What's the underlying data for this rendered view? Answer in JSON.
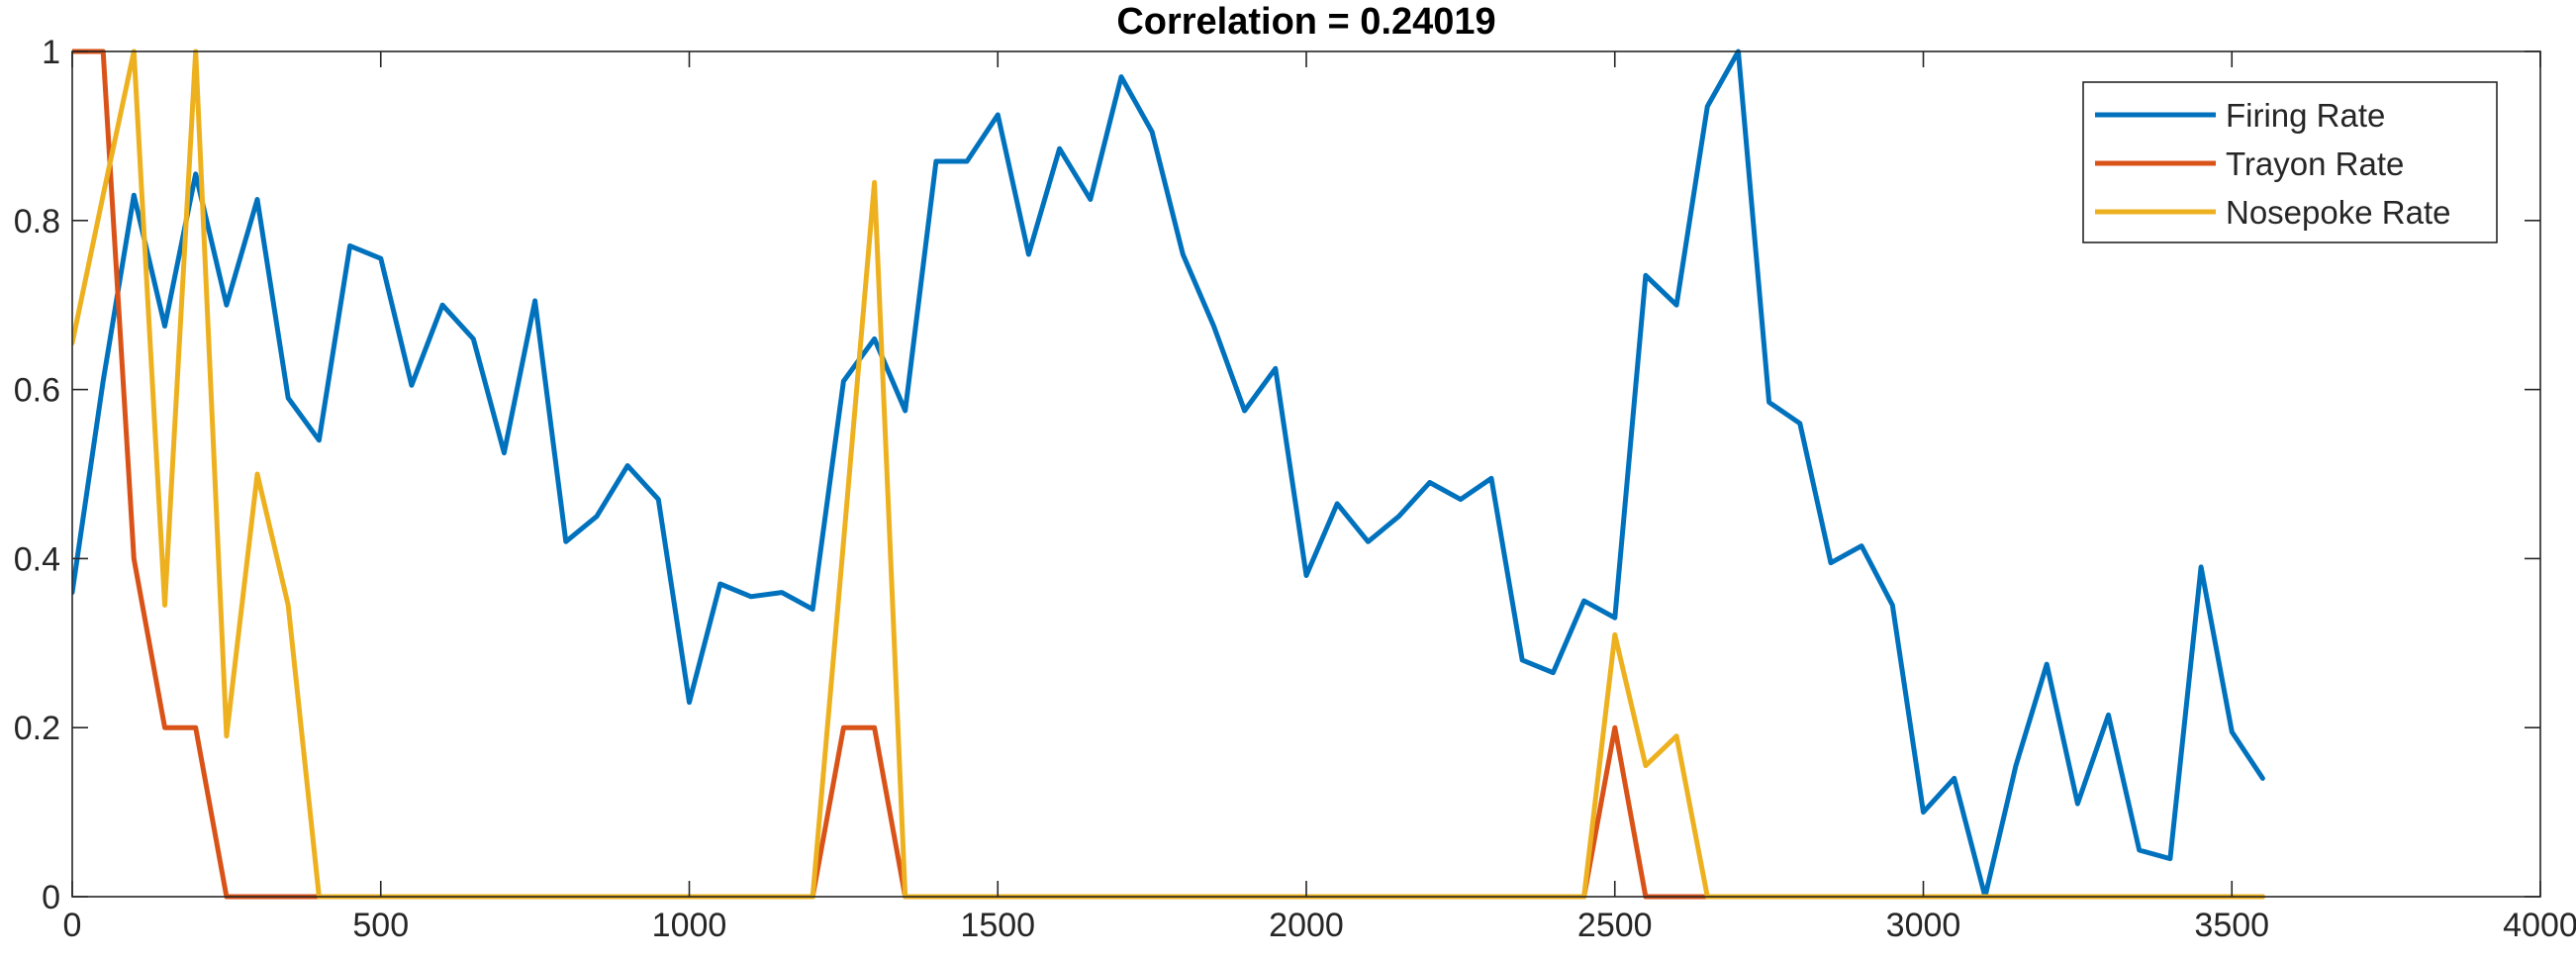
{
  "chart_data": {
    "type": "line",
    "title": "Correlation = 0.24019",
    "xlabel": "",
    "ylabel": "",
    "xlim": [
      0,
      4000
    ],
    "ylim": [
      0,
      1
    ],
    "x_ticks": [
      0,
      500,
      1000,
      1500,
      2000,
      2500,
      3000,
      3500,
      4000
    ],
    "y_ticks": [
      0,
      0.2,
      0.4,
      0.6,
      0.8,
      1
    ],
    "x_tick_labels": [
      "0",
      "500",
      "1000",
      "1500",
      "2000",
      "2500",
      "3000",
      "3500",
      "4000"
    ],
    "y_tick_labels": [
      "0",
      "0.2",
      "0.4",
      "0.6",
      "0.8",
      "1"
    ],
    "grid": false,
    "box": true,
    "legend_position": "top-right",
    "series": [
      {
        "name": "Firing Rate",
        "color": "#0072BD",
        "x": [
          0,
          50,
          100,
          150,
          200,
          250,
          300,
          350,
          400,
          450,
          500,
          550,
          600,
          650,
          700,
          750,
          800,
          850,
          900,
          950,
          1000,
          1050,
          1100,
          1150,
          1200,
          1250,
          1300,
          1350,
          1400,
          1450,
          1500,
          1550,
          1600,
          1650,
          1700,
          1750,
          1800,
          1850,
          1900,
          1950,
          2000,
          2050,
          2100,
          2150,
          2200,
          2250,
          2300,
          2350,
          2400,
          2450,
          2500,
          2550,
          2600,
          2650,
          2700,
          2750,
          2800,
          2850,
          2900,
          2950,
          3000,
          3050,
          3100,
          3150,
          3200,
          3250,
          3300,
          3350,
          3400,
          3450,
          3500,
          3550
        ],
        "values": [
          0.36,
          0.61,
          0.83,
          0.675,
          0.855,
          0.7,
          0.825,
          0.59,
          0.54,
          0.77,
          0.755,
          0.605,
          0.7,
          0.66,
          0.525,
          0.705,
          0.42,
          0.45,
          0.51,
          0.47,
          0.23,
          0.37,
          0.355,
          0.36,
          0.34,
          0.61,
          0.66,
          0.575,
          0.87,
          0.87,
          0.925,
          0.76,
          0.885,
          0.825,
          0.97,
          0.905,
          0.76,
          0.675,
          0.575,
          0.625,
          0.38,
          0.465,
          0.42,
          0.45,
          0.49,
          0.47,
          0.495,
          0.28,
          0.265,
          0.35,
          0.33,
          0.735,
          0.7,
          0.935,
          1.0,
          0.585,
          0.56,
          0.395,
          0.415,
          0.345,
          0.1,
          0.14,
          0.0,
          0.155,
          0.275,
          0.11,
          0.215,
          0.055,
          0.045,
          0.39,
          0.195,
          0.14
        ]
      },
      {
        "name": "Trayon Rate",
        "color": "#D95319",
        "x": [
          0,
          50,
          100,
          150,
          200,
          250,
          300,
          350,
          400,
          450,
          500,
          550,
          600,
          650,
          700,
          750,
          800,
          850,
          900,
          950,
          1000,
          1050,
          1100,
          1150,
          1200,
          1250,
          1300,
          1350,
          1400,
          1450,
          1500,
          1550,
          1600,
          1650,
          1700,
          1750,
          1800,
          1850,
          1900,
          1950,
          2000,
          2050,
          2100,
          2150,
          2200,
          2250,
          2300,
          2350,
          2400,
          2450,
          2500,
          2550,
          2600,
          2650,
          2700,
          2750,
          2800,
          2850,
          2900,
          2950,
          3000,
          3050,
          3100,
          3150,
          3200,
          3250,
          3300,
          3350,
          3400,
          3450,
          3500,
          3550
        ],
        "values": [
          1.0,
          1.0,
          0.4,
          0.2,
          0.2,
          0.0,
          0.0,
          0.0,
          0.0,
          0.0,
          0.0,
          0.0,
          0.0,
          0.0,
          0.0,
          0.0,
          0.0,
          0.0,
          0.0,
          0.0,
          0.0,
          0.0,
          0.0,
          0.0,
          0.0,
          0.2,
          0.2,
          0.0,
          0.0,
          0.0,
          0.0,
          0.0,
          0.0,
          0.0,
          0.0,
          0.0,
          0.0,
          0.0,
          0.0,
          0.0,
          0.0,
          0.0,
          0.0,
          0.0,
          0.0,
          0.0,
          0.0,
          0.0,
          0.0,
          0.0,
          0.2,
          0.0,
          0.0,
          0.0,
          0.0,
          0.0,
          0.0,
          0.0,
          0.0,
          0.0,
          0.0,
          0.0,
          0.0,
          0.0,
          0.0,
          0.0,
          0.0,
          0.0,
          0.0,
          0.0,
          0.0,
          0.0
        ]
      },
      {
        "name": "Nosepoke Rate",
        "color": "#EDB120",
        "x": [
          0,
          50,
          100,
          150,
          200,
          250,
          300,
          350,
          400,
          450,
          500,
          550,
          600,
          650,
          700,
          750,
          800,
          850,
          900,
          950,
          1000,
          1050,
          1100,
          1150,
          1200,
          1250,
          1300,
          1350,
          1400,
          1450,
          1500,
          1550,
          1600,
          1650,
          1700,
          1750,
          1800,
          1850,
          1900,
          1950,
          2000,
          2050,
          2100,
          2150,
          2200,
          2250,
          2300,
          2350,
          2400,
          2450,
          2500,
          2550,
          2600,
          2650,
          2700,
          2750,
          2800,
          2850,
          2900,
          2950,
          3000,
          3050,
          3100,
          3150,
          3200,
          3250,
          3300,
          3350,
          3400,
          3450,
          3500,
          3550
        ],
        "values": [
          0.655,
          0.83,
          1.0,
          0.345,
          1.0,
          0.19,
          0.5,
          0.345,
          0.0,
          0.0,
          0.0,
          0.0,
          0.0,
          0.0,
          0.0,
          0.0,
          0.0,
          0.0,
          0.0,
          0.0,
          0.0,
          0.0,
          0.0,
          0.0,
          0.0,
          0.42,
          0.845,
          0.0,
          0.0,
          0.0,
          0.0,
          0.0,
          0.0,
          0.0,
          0.0,
          0.0,
          0.0,
          0.0,
          0.0,
          0.0,
          0.0,
          0.0,
          0.0,
          0.0,
          0.0,
          0.0,
          0.0,
          0.0,
          0.0,
          0.0,
          0.31,
          0.155,
          0.19,
          0.0,
          0.0,
          0.0,
          0.0,
          0.0,
          0.0,
          0.0,
          0.0,
          0.0,
          0.0,
          0.0,
          0.0,
          0.0,
          0.0,
          0.0,
          0.0,
          0.0,
          0.0,
          0.0
        ]
      }
    ]
  }
}
